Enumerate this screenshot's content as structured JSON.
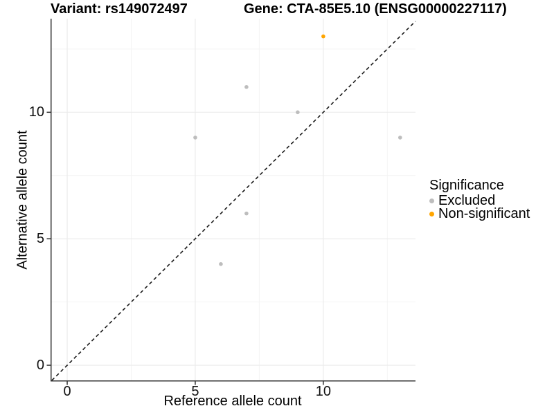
{
  "titles": {
    "left": "Variant: rs149072497",
    "right": "Gene: CTA-85E5.10 (ENSG00000227117)"
  },
  "legend": {
    "title": "Significance",
    "items": [
      {
        "label": "Excluded",
        "color": "#bdbdbd"
      },
      {
        "label": "Non-significant",
        "color": "#ffa500"
      }
    ]
  },
  "style": {
    "axis_line_color": "#333333",
    "grid_major_color": "#ebebeb",
    "grid_minor_color": "#f4f4f4",
    "identity_line_color": "#1a1a1a",
    "point_radius": 2.8
  },
  "chart_data": {
    "type": "scatter",
    "title": "Variant: rs149072497 — Gene: CTA-85E5.10 (ENSG00000227117)",
    "xlabel": "Reference allele count",
    "ylabel": "Alternative allele count",
    "xlim": [
      -0.65,
      13.6
    ],
    "ylim": [
      -0.6,
      13.7
    ],
    "x_major_ticks": [
      0,
      5,
      10
    ],
    "y_major_ticks": [
      0,
      5,
      10
    ],
    "x_minor_ticks": [
      2.5,
      7.5,
      12.5
    ],
    "y_minor_ticks": [
      2.5,
      7.5,
      12.5
    ],
    "x_tick_labels": [
      "0",
      "5",
      "10"
    ],
    "y_tick_labels": [
      "0",
      "5",
      "10"
    ],
    "grid": true,
    "identity_line": "y=x dashed",
    "legend_position": "right",
    "legend_title": "Significance",
    "series": [
      {
        "name": "Excluded",
        "color": "#bdbdbd",
        "points": [
          [
            5,
            9
          ],
          [
            6,
            4
          ],
          [
            7,
            6
          ],
          [
            7,
            11
          ],
          [
            9,
            10
          ],
          [
            13,
            9
          ]
        ]
      },
      {
        "name": "Non-significant",
        "color": "#ffa500",
        "points": [
          [
            10,
            13
          ]
        ]
      }
    ]
  }
}
